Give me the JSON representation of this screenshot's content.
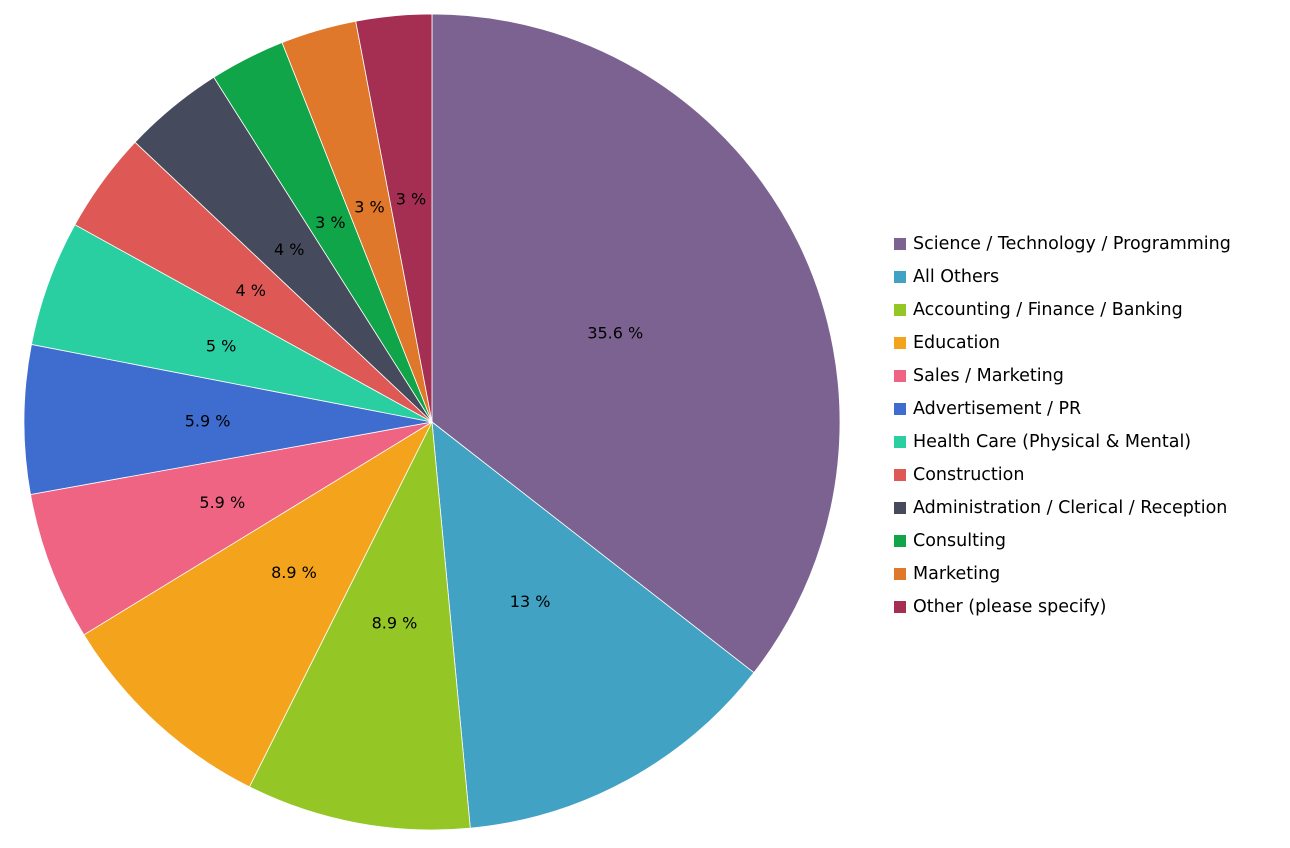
{
  "chart_data": {
    "type": "pie",
    "title": "",
    "start_angle": "top, clockwise",
    "legend_position": "right",
    "categories": [
      "Science / Technology / Programming",
      "All Others",
      "Accounting / Finance / Banking",
      "Education",
      "Sales / Marketing",
      "Advertisement / PR",
      "Health Care (Physical & Mental)",
      "Construction",
      "Administration / Clerical / Reception",
      "Consulting",
      "Marketing",
      "Other (please specify)"
    ],
    "values": [
      35.6,
      13,
      8.9,
      8.9,
      5.9,
      5.9,
      5,
      4,
      4,
      3,
      3,
      3
    ],
    "labels": [
      "35.6 %",
      "13 %",
      "8.9 %",
      "8.9 %",
      "5.9 %",
      "5.9 %",
      "5 %",
      "4 %",
      "4 %",
      "3 %",
      "3 %",
      "3 %"
    ],
    "colors": [
      "#7B6290",
      "#41A2C3",
      "#94C626",
      "#F4A31C",
      "#EF6383",
      "#3E6CCF",
      "#2ACFA1",
      "#DE5955",
      "#454A5C",
      "#10A548",
      "#E0782B",
      "#A52F53"
    ]
  }
}
